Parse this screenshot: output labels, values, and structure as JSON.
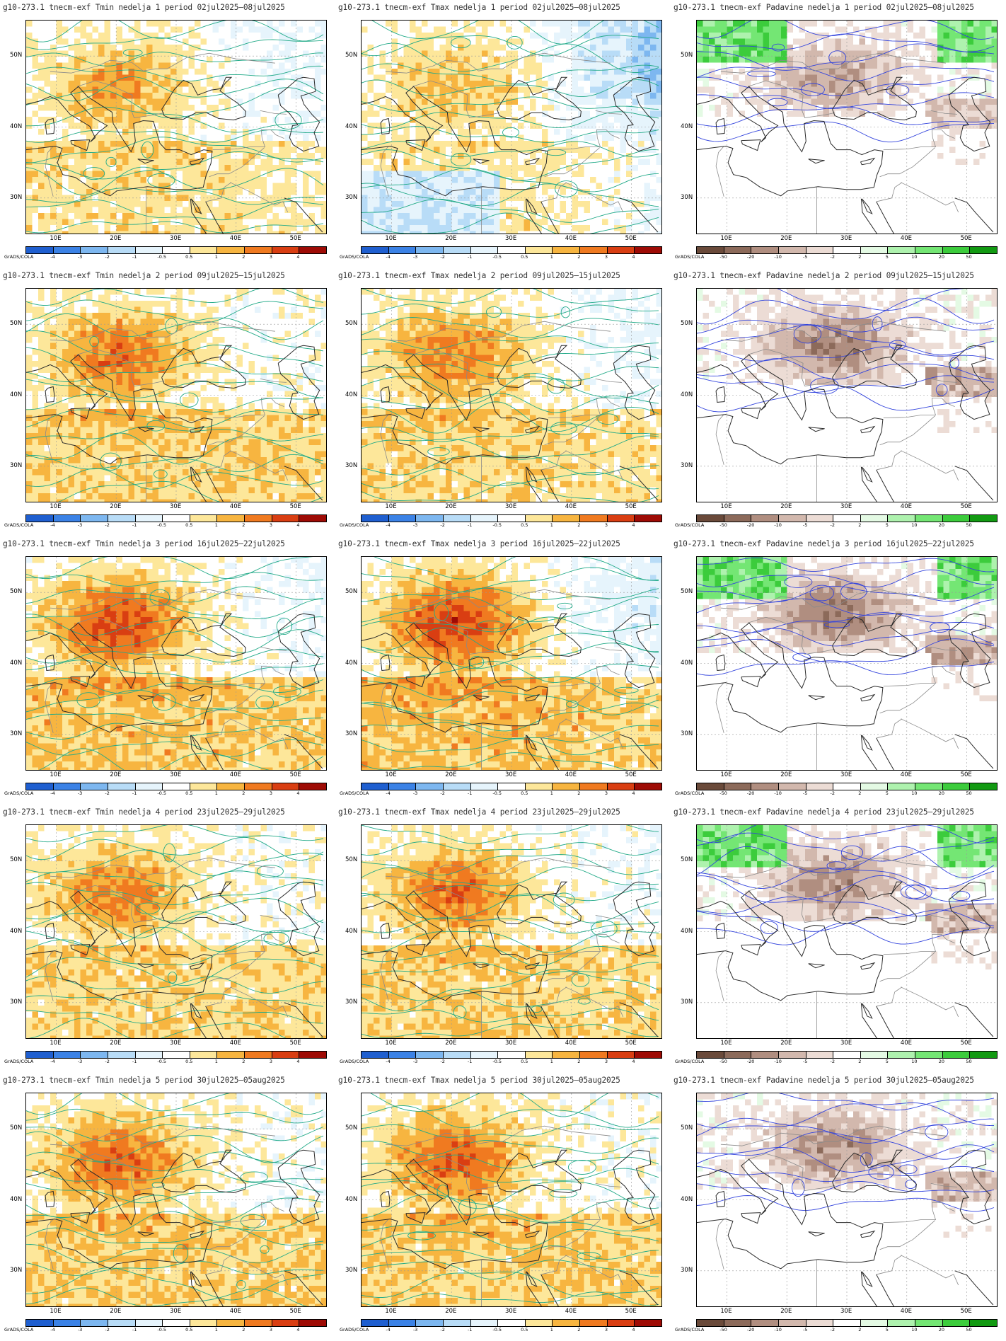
{
  "panels": [
    {
      "row": 0,
      "col": 0,
      "title": "g10-273.1 tnecm-exf Tmin nedelja 1 period 02jul2025–08jul2025",
      "kind": "temp",
      "heat": 0.55,
      "cool": 0.15,
      "contour": "#22aa88"
    },
    {
      "row": 0,
      "col": 1,
      "title": "g10-273.1 tnecm-exf Tmax nedelja 1 period 02jul2025–08jul2025",
      "kind": "temp",
      "heat": 0.45,
      "cool": 0.55,
      "contour": "#22aa88"
    },
    {
      "row": 0,
      "col": 2,
      "title": "g10-273.1 tnecm-exf Padavine nedelja 1 period 02jul2025–08jul2025",
      "kind": "precip",
      "dry": 0.5,
      "wet": 0.15,
      "contour": "#3344dd"
    },
    {
      "row": 1,
      "col": 0,
      "title": "g10-273.1 tnecm-exf Tmin nedelja 2 period 09jul2025–15jul2025",
      "kind": "temp",
      "heat": 0.75,
      "cool": 0.0,
      "contour": "#22aa88"
    },
    {
      "row": 1,
      "col": 1,
      "title": "g10-273.1 tnecm-exf Tmax nedelja 2 period 09jul2025–15jul2025",
      "kind": "temp",
      "heat": 0.7,
      "cool": 0.15,
      "contour": "#22aa88"
    },
    {
      "row": 1,
      "col": 2,
      "title": "g10-273.1 tnecm-exf Padavine nedelja 2 period 09jul2025–15jul2025",
      "kind": "precip",
      "dry": 0.65,
      "wet": 0.0,
      "contour": "#3344dd"
    },
    {
      "row": 2,
      "col": 0,
      "title": "g10-273.1 tnecm-exf Tmin nedelja 3 period 16jul2025–22jul2025",
      "kind": "temp",
      "heat": 0.9,
      "cool": 0.1,
      "contour": "#22aa88"
    },
    {
      "row": 2,
      "col": 1,
      "title": "g10-273.1 tnecm-exf Tmax nedelja 3 period 16jul2025–22jul2025",
      "kind": "temp",
      "heat": 0.95,
      "cool": 0.25,
      "contour": "#22aa88"
    },
    {
      "row": 2,
      "col": 2,
      "title": "g10-273.1 tnecm-exf Padavine nedelja 3 period 16jul2025–22jul2025",
      "kind": "precip",
      "dry": 0.7,
      "wet": 0.1,
      "contour": "#3344dd"
    },
    {
      "row": 3,
      "col": 0,
      "title": "g10-273.1 tnecm-exf Tmin nedelja 4 period 23jul2025–29jul2025",
      "kind": "temp",
      "heat": 0.7,
      "cool": 0.0,
      "contour": "#22aa88"
    },
    {
      "row": 3,
      "col": 1,
      "title": "g10-273.1 tnecm-exf Tmax nedelja 4 period 23jul2025–29jul2025",
      "kind": "temp",
      "heat": 0.75,
      "cool": 0.05,
      "contour": "#22aa88"
    },
    {
      "row": 3,
      "col": 2,
      "title": "g10-273.1 tnecm-exf Padavine nedelja 4 period 23jul2025–29jul2025",
      "kind": "precip",
      "dry": 0.6,
      "wet": 0.05,
      "contour": "#3344dd"
    },
    {
      "row": 4,
      "col": 0,
      "title": "g10-273.1 tnecm-exf Tmin nedelja 5 period 30jul2025–05aug2025",
      "kind": "temp",
      "heat": 0.8,
      "cool": 0.0,
      "contour": "#22aa88"
    },
    {
      "row": 4,
      "col": 1,
      "title": "g10-273.1 tnecm-exf Tmax nedelja 5 period 30jul2025–05aug2025",
      "kind": "temp",
      "heat": 0.8,
      "cool": 0.0,
      "contour": "#22aa88"
    },
    {
      "row": 4,
      "col": 2,
      "title": "g10-273.1 tnecm-exf Padavine nedelja 5 period 30jul2025–05aug2025",
      "kind": "precip",
      "dry": 0.6,
      "wet": 0.0,
      "contour": "#3344dd"
    }
  ],
  "axes": {
    "lat_labels": [
      "50N",
      "40N",
      "30N"
    ],
    "lon_labels": [
      "10E",
      "20E",
      "30E",
      "40E",
      "50E"
    ]
  },
  "colorbars": {
    "credit": "GrADS/COLA",
    "temp_colors": [
      "#1f5fd0",
      "#3b82e6",
      "#7db7f0",
      "#b8dcf7",
      "#e6f4fc",
      "#ffffff",
      "#fde79a",
      "#f7b540",
      "#f07a20",
      "#d93e12",
      "#9e0b05"
    ],
    "temp_labels": [
      "-4",
      "-3",
      "-2",
      "-1",
      "-0.5",
      "0.5",
      "1",
      "2",
      "3",
      "4"
    ],
    "precip_colors": [
      "#6a4a3a",
      "#8c6a5a",
      "#b08e80",
      "#d2b8ad",
      "#ecdcd5",
      "#ffffff",
      "#e4fae4",
      "#aef2ae",
      "#74e674",
      "#3ccc3c",
      "#129a12"
    ],
    "precip_labels": [
      "-50",
      "-20",
      "-10",
      "-5",
      "-2",
      "2",
      "5",
      "10",
      "20",
      "50"
    ]
  }
}
